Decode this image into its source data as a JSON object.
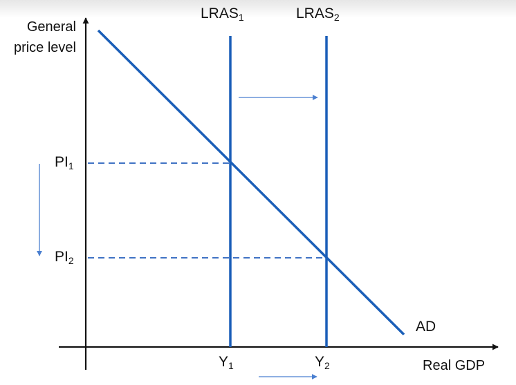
{
  "axes": {
    "y_label_line1": "General",
    "y_label_line2": "price level",
    "x_label": "Real GDP"
  },
  "curves": {
    "lras1": {
      "base": "LRAS",
      "sub": "1"
    },
    "lras2": {
      "base": "LRAS",
      "sub": "2"
    },
    "ad": "AD"
  },
  "price_levels": {
    "pl1": {
      "base": "PI",
      "sub": "1"
    },
    "pl2": {
      "base": "PI",
      "sub": "2"
    }
  },
  "outputs": {
    "y1": {
      "base": "Y",
      "sub": "1"
    },
    "y2": {
      "base": "Y",
      "sub": "2"
    }
  },
  "colors": {
    "curve": "#1a5eb8",
    "dashed": "#3f72c4",
    "arrow": "#4a7fd0",
    "axis": "#111111"
  }
}
